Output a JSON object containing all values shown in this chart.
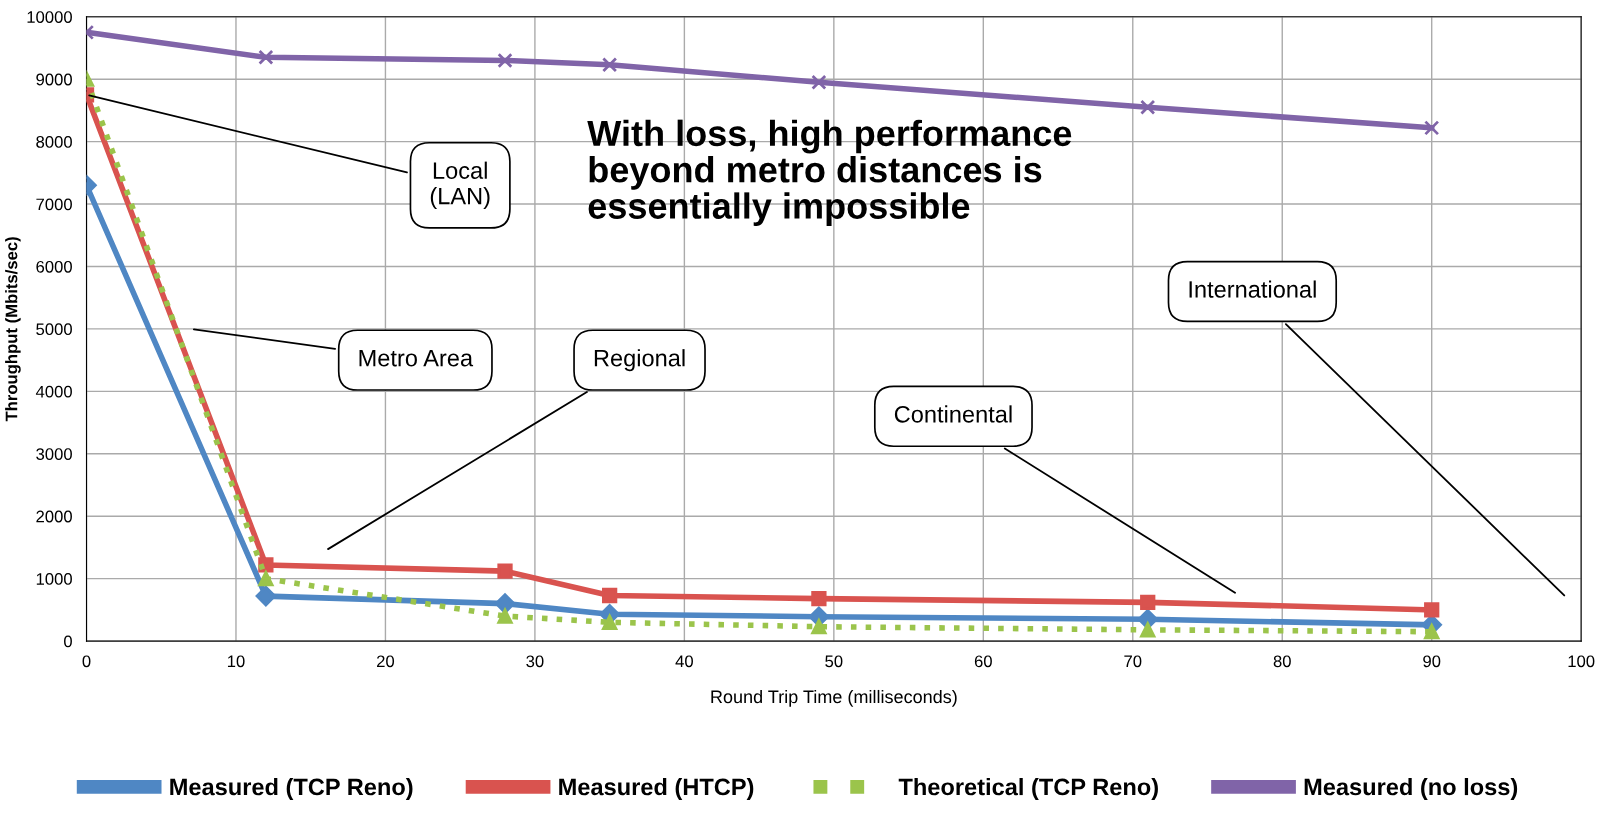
{
  "chart_data": {
    "type": "line",
    "xlabel": "Round Trip Time (milliseconds)",
    "ylabel": "Throughput (Mbits/sec)",
    "x": [
      0,
      12,
      28,
      35,
      49,
      71,
      90
    ],
    "series": [
      {
        "name": "Measured (TCP Reno)",
        "color": "#4f87c4",
        "marker": "diamond",
        "line_style": "solid",
        "values": [
          7300,
          720,
          600,
          430,
          390,
          350,
          260
        ]
      },
      {
        "name": "Measured (HTCP)",
        "color": "#d9534f",
        "marker": "square",
        "line_style": "solid",
        "values": [
          8750,
          1220,
          1120,
          730,
          680,
          620,
          500
        ]
      },
      {
        "name": "Theoretical (TCP Reno)",
        "color": "#9bc44b",
        "marker": "triangle",
        "line_style": "dotted",
        "values": [
          9000,
          1000,
          400,
          300,
          230,
          180,
          150
        ]
      },
      {
        "name": "Measured (no loss)",
        "color": "#8064a8",
        "marker": "cross",
        "line_style": "solid",
        "values": [
          9750,
          9350,
          9300,
          9230,
          8950,
          8550,
          8220
        ]
      }
    ],
    "xlim": [
      0,
      100
    ],
    "xticks": [
      0,
      10,
      20,
      30,
      40,
      50,
      60,
      70,
      80,
      90,
      100
    ],
    "ylim": [
      0,
      10000
    ],
    "yticks": [
      0,
      1000,
      2000,
      3000,
      4000,
      5000,
      6000,
      7000,
      8000,
      9000,
      10000
    ],
    "grid": true,
    "legend": "bottom",
    "annotations": [
      {
        "text": "Local\n(LAN)",
        "x": 0,
        "y": 8750
      },
      "Metro Area",
      "Regional",
      "Continental",
      "International",
      "With loss, high performance\nbeyond metro distances is\nessentially impossible"
    ]
  }
}
